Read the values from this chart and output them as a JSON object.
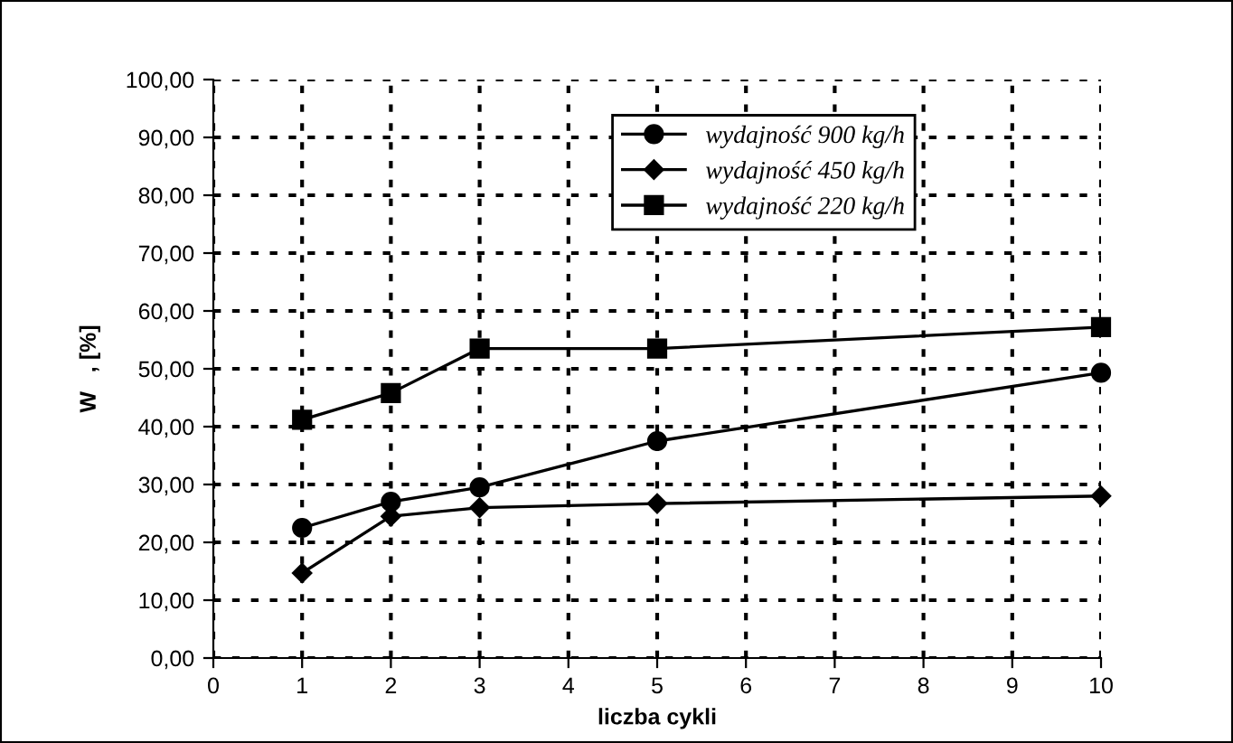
{
  "chart_data": {
    "type": "line",
    "xlabel": "liczba cykli",
    "ylabel": "W   , [%]",
    "x": [
      1,
      2,
      3,
      5,
      10
    ],
    "series": [
      {
        "name": "wydajność 900 kg/h",
        "color": "#000000",
        "marker": "circle",
        "values": [
          22.5,
          27.0,
          29.5,
          37.5,
          49.3
        ]
      },
      {
        "name": "wydajność 450 kg/h",
        "color": "#000000",
        "marker": "diamond",
        "values": [
          14.7,
          24.5,
          26.0,
          26.7,
          28.0
        ]
      },
      {
        "name": "wydajność 220 kg/h",
        "color": "#000000",
        "marker": "square",
        "values": [
          41.2,
          45.8,
          53.5,
          53.5,
          57.2
        ]
      }
    ],
    "xlim": [
      0,
      10
    ],
    "xticks": [
      0,
      1,
      2,
      3,
      4,
      5,
      6,
      7,
      8,
      9,
      10
    ],
    "ylim": [
      0,
      100
    ],
    "yticks": [
      {
        "value": 0,
        "label": "0,00"
      },
      {
        "value": 10,
        "label": "10,00"
      },
      {
        "value": 20,
        "label": "20,00"
      },
      {
        "value": 30,
        "label": "30,00"
      },
      {
        "value": 40,
        "label": "40,00"
      },
      {
        "value": 50,
        "label": "50,00"
      },
      {
        "value": 60,
        "label": "60,00"
      },
      {
        "value": 70,
        "label": "70,00"
      },
      {
        "value": 80,
        "label": "80,00"
      },
      {
        "value": 90,
        "label": "90,00"
      },
      {
        "value": 100,
        "label": "100,00"
      }
    ],
    "grid": true,
    "legend": "top",
    "line_style": "solid"
  }
}
